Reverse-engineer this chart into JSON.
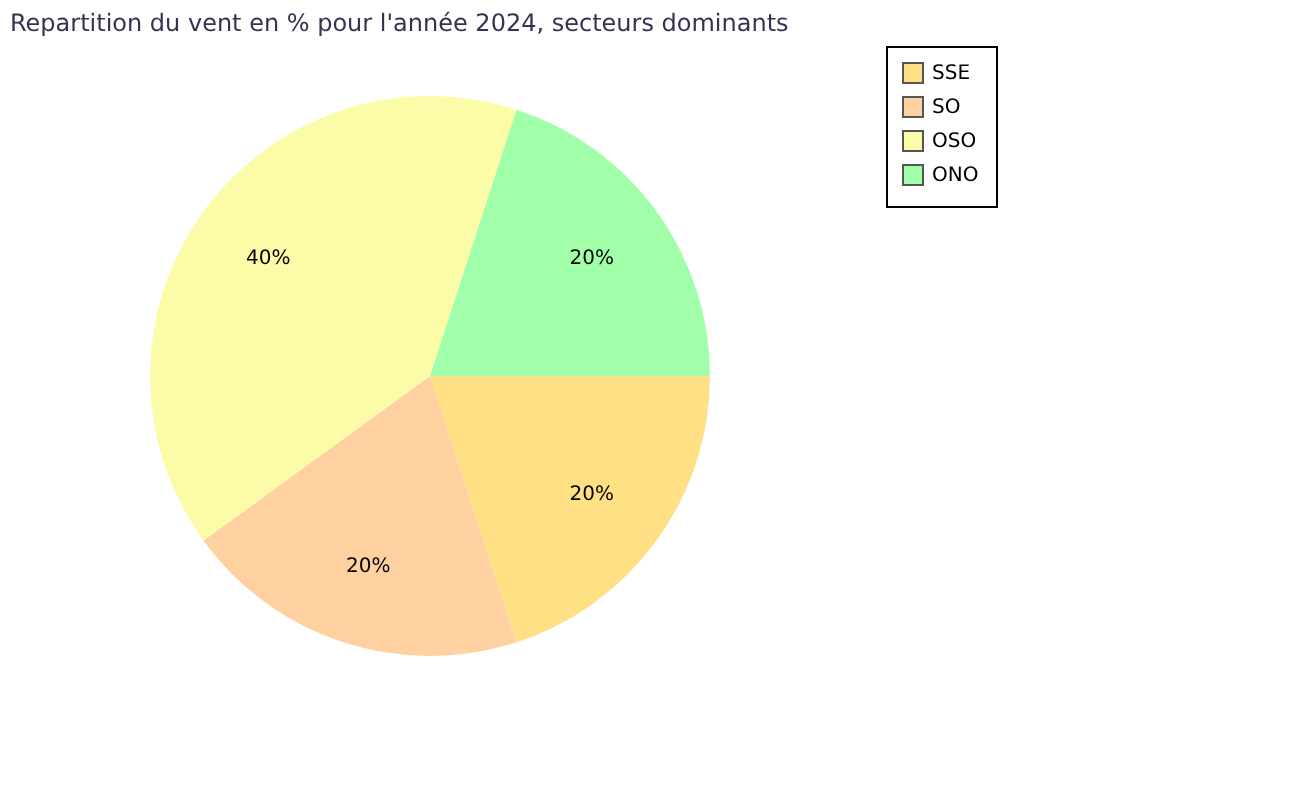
{
  "chart_data": {
    "type": "pie",
    "title": "Repartition du vent en % pour l'année 2024, secteurs dominants",
    "categories": [
      "SSE",
      "SO",
      "OSO",
      "ONO"
    ],
    "values": [
      20,
      20,
      40,
      20
    ],
    "colors": [
      "#ffe084",
      "#ffd0a0",
      "#fcfca8",
      "#a0ffa8"
    ],
    "value_labels": [
      "20%",
      "20%",
      "40%",
      "20%"
    ],
    "legend": "right"
  }
}
